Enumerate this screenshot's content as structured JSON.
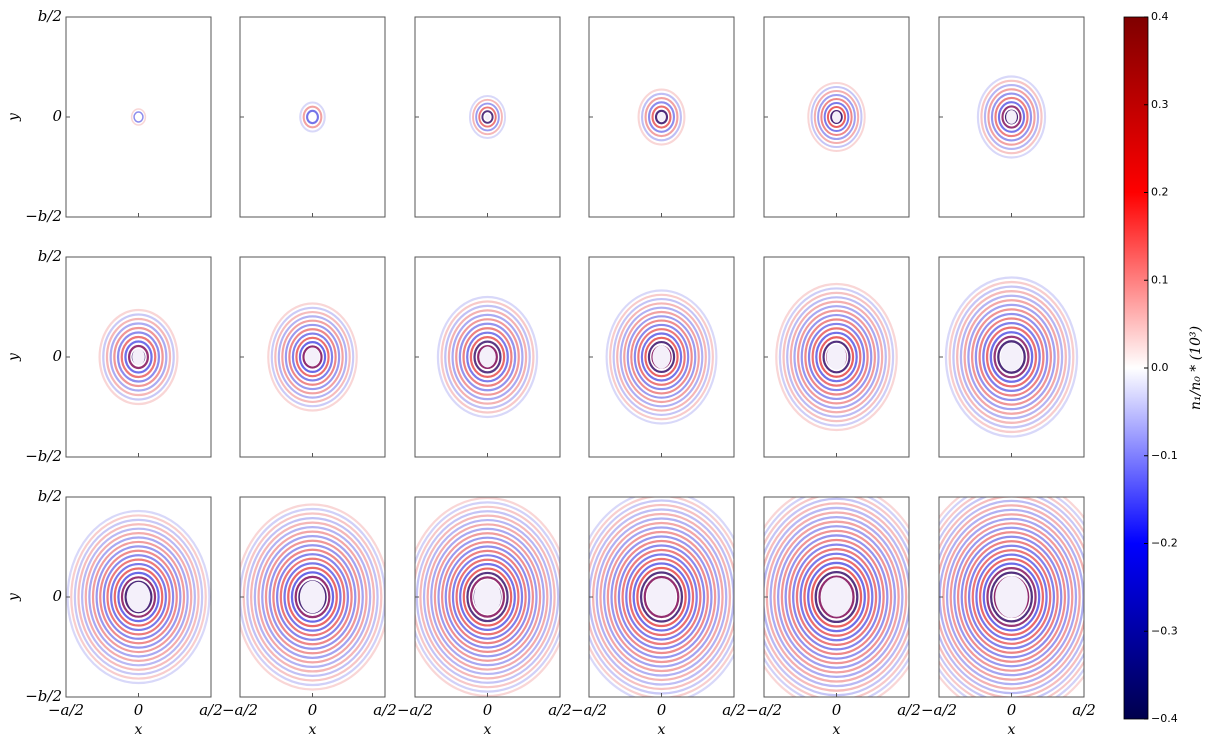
{
  "chart_data": {
    "type": "heatmap",
    "xlabel": "x",
    "ylabel": "y",
    "xlim": [
      -0.5,
      0.5
    ],
    "xticks": [
      {
        "value": -0.5,
        "label": "−a/2"
      },
      0,
      {
        "value": 0.5,
        "label": "a/2"
      }
    ],
    "ylim": [
      -0.5,
      0.5
    ],
    "yticks": [
      {
        "value": 0.5,
        "label": "b/2"
      },
      0,
      {
        "value": -0.5,
        "label": "−b/2"
      }
    ],
    "colormap": [
      "#00004c",
      "#0000ff",
      "#ffffff",
      "#ff0000",
      "#7f0000"
    ],
    "colorbar": {
      "label": "n₁/n₀ * (10³)",
      "lim": [
        -0.4,
        0.4
      ],
      "ticks": [
        {
          "value": 0.4,
          "label": "0.4"
        },
        {
          "value": 0.3,
          "label": "0.3"
        },
        {
          "value": 0.2,
          "label": "0.2"
        },
        {
          "value": 0.1,
          "label": "0.1"
        },
        {
          "value": 0,
          "label": "0.0"
        },
        {
          "value": -0.1,
          "label": "−0.1"
        },
        {
          "value": -0.2,
          "label": "−0.2"
        },
        {
          "value": -0.3,
          "label": "−0.3"
        },
        {
          "value": -0.4,
          "label": "−0.4"
        }
      ]
    }
  }
}
